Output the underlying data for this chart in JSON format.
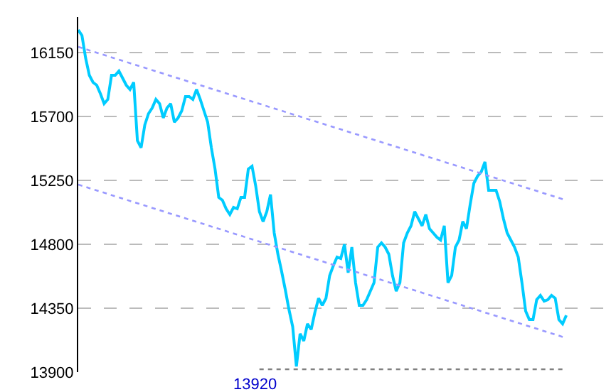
{
  "chart_data": {
    "type": "line",
    "categories": [
      null,
      null,
      null,
      null,
      null,
      null,
      null,
      null,
      null,
      null,
      null,
      null,
      null,
      null,
      null,
      null,
      null,
      null,
      null,
      null,
      null,
      null,
      null,
      null,
      null,
      null,
      null,
      null,
      null,
      null,
      null,
      null,
      null,
      null,
      null,
      null,
      null,
      null,
      null,
      null,
      null,
      null,
      null,
      null,
      null,
      null,
      null,
      null,
      null,
      null,
      null,
      null,
      null,
      null,
      null,
      null,
      null,
      null,
      null,
      null,
      null,
      null,
      null,
      null,
      null,
      null,
      null,
      null,
      null,
      null,
      null,
      null,
      null,
      null,
      null,
      null,
      null,
      null,
      null,
      null,
      null,
      null,
      null,
      null,
      null,
      null,
      null,
      null,
      null,
      null,
      null,
      null,
      null,
      null,
      null,
      null,
      null,
      null,
      null,
      null,
      null,
      null,
      null,
      null,
      null,
      null,
      null,
      null,
      null,
      null,
      null,
      null,
      null,
      null,
      null,
      null,
      null,
      null,
      null,
      null,
      null,
      null,
      null,
      null,
      null,
      null,
      null,
      null,
      null,
      null,
      null,
      null,
      null
    ],
    "ylim": [
      13900,
      16400
    ],
    "yticks": [
      13900,
      14350,
      14800,
      15250,
      15700,
      16150
    ],
    "grid": "y",
    "tick_labels": "y",
    "marker": "none",
    "annotations": [
      "13920"
    ],
    "series": [
      {
        "color": "#00ccff",
        "line_style": "solid",
        "values": [
          16310,
          16270,
          16110,
          15990,
          15940,
          15920,
          15860,
          15790,
          15820,
          15990,
          15990,
          16020,
          15970,
          15920,
          15890,
          15940,
          15530,
          15480,
          15640,
          15720,
          15760,
          15820,
          15790,
          15690,
          15760,
          15790,
          15660,
          15690,
          15740,
          15840,
          15840,
          15820,
          15890,
          15820,
          15740,
          15660,
          15480,
          15330,
          15130,
          15110,
          15050,
          15010,
          15060,
          15050,
          15130,
          15130,
          15330,
          15350,
          15210,
          15030,
          14960,
          15030,
          15150,
          14880,
          14730,
          14610,
          14480,
          14340,
          14220,
          13940,
          14170,
          14120,
          14240,
          14200,
          14320,
          14420,
          14370,
          14420,
          14580,
          14650,
          14710,
          14700,
          14800,
          14600,
          14780,
          14530,
          14370,
          14370,
          14410,
          14470,
          14530,
          14780,
          14810,
          14780,
          14730,
          14580,
          14470,
          14530,
          14810,
          14880,
          14930,
          15030,
          14980,
          14930,
          15010,
          14910,
          14880,
          14850,
          14830,
          14930,
          14530,
          14580,
          14780,
          14830,
          14960,
          14910,
          15080,
          15230,
          15280,
          15310,
          15380,
          15180,
          15180,
          15180,
          15100,
          14980,
          14880,
          14830,
          14780,
          14710,
          14530,
          14330,
          14270,
          14270,
          14410,
          14440,
          14400,
          14410,
          14440,
          14420,
          14270,
          14240,
          14300
        ]
      },
      {
        "color": "#9999ff",
        "line_style": "dotted",
        "values": [
          16190,
          null,
          null,
          null,
          null,
          null,
          null,
          null,
          null,
          null,
          null,
          null,
          null,
          null,
          null,
          null,
          null,
          null,
          null,
          null,
          null,
          null,
          null,
          null,
          null,
          null,
          null,
          null,
          null,
          null,
          null,
          null,
          null,
          null,
          null,
          null,
          null,
          null,
          null,
          null,
          null,
          null,
          null,
          null,
          null,
          null,
          null,
          null,
          null,
          null,
          null,
          null,
          null,
          null,
          null,
          null,
          null,
          null,
          null,
          null,
          null,
          null,
          null,
          null,
          null,
          null,
          null,
          null,
          null,
          null,
          null,
          null,
          null,
          null,
          null,
          null,
          null,
          null,
          null,
          null,
          null,
          null,
          null,
          null,
          null,
          null,
          null,
          null,
          null,
          null,
          null,
          null,
          null,
          null,
          null,
          null,
          null,
          null,
          null,
          null,
          null,
          null,
          null,
          null,
          null,
          null,
          null,
          null,
          null,
          null,
          null,
          null,
          null,
          null,
          null,
          null,
          null,
          null,
          null,
          null,
          null,
          null,
          null,
          null,
          null,
          null,
          null,
          null,
          null,
          null,
          null,
          null,
          15110
        ]
      },
      {
        "color": "#9999ff",
        "line_style": "dotted",
        "values": [
          15220,
          null,
          null,
          null,
          null,
          null,
          null,
          null,
          null,
          null,
          null,
          null,
          null,
          null,
          null,
          null,
          null,
          null,
          null,
          null,
          null,
          null,
          null,
          null,
          null,
          null,
          null,
          null,
          null,
          null,
          null,
          null,
          null,
          null,
          null,
          null,
          null,
          null,
          null,
          null,
          null,
          null,
          null,
          null,
          null,
          null,
          null,
          null,
          null,
          null,
          null,
          null,
          null,
          null,
          null,
          null,
          null,
          null,
          null,
          null,
          null,
          null,
          null,
          null,
          null,
          null,
          null,
          null,
          null,
          null,
          null,
          null,
          null,
          null,
          null,
          null,
          null,
          null,
          null,
          null,
          null,
          null,
          null,
          null,
          null,
          null,
          null,
          null,
          null,
          null,
          null,
          null,
          null,
          null,
          null,
          null,
          null,
          null,
          null,
          null,
          null,
          null,
          null,
          null,
          null,
          null,
          null,
          null,
          null,
          null,
          null,
          null,
          null,
          null,
          null,
          null,
          null,
          null,
          null,
          null,
          null,
          null,
          null,
          null,
          null,
          null,
          null,
          null,
          null,
          null,
          null,
          null,
          14140
        ]
      },
      {
        "color": "#808080",
        "line_style": "dotted",
        "values": [
          null,
          null,
          null,
          null,
          null,
          null,
          null,
          null,
          null,
          null,
          null,
          null,
          null,
          null,
          null,
          null,
          null,
          null,
          null,
          null,
          null,
          null,
          null,
          null,
          null,
          null,
          null,
          null,
          null,
          null,
          null,
          null,
          null,
          null,
          null,
          null,
          null,
          null,
          null,
          null,
          null,
          null,
          null,
          null,
          null,
          null,
          null,
          null,
          null,
          13920,
          null,
          null,
          null,
          null,
          null,
          null,
          null,
          null,
          null,
          null,
          null,
          null,
          null,
          null,
          null,
          null,
          null,
          null,
          null,
          null,
          null,
          null,
          null,
          null,
          null,
          null,
          null,
          null,
          null,
          null,
          null,
          null,
          null,
          null,
          null,
          null,
          null,
          null,
          null,
          null,
          null,
          null,
          null,
          null,
          null,
          null,
          null,
          null,
          null,
          null,
          null,
          null,
          null,
          null,
          null,
          null,
          null,
          null,
          null,
          null,
          null,
          null,
          null,
          null,
          null,
          null,
          null,
          null,
          null,
          null,
          null,
          null,
          null,
          null,
          null,
          null,
          null,
          null,
          null,
          null,
          null,
          null,
          13920
        ]
      }
    ]
  }
}
